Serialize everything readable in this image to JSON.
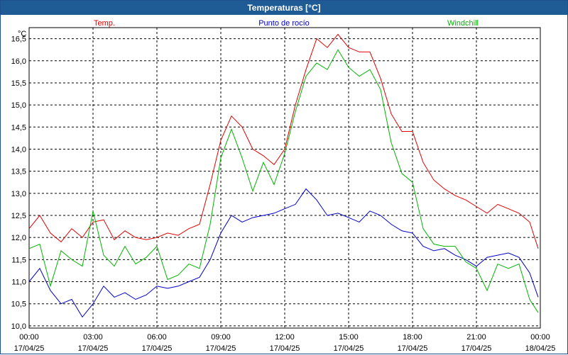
{
  "window": {
    "title": "Temperaturas [°C]"
  },
  "chart_data": {
    "type": "line",
    "title": "Temperaturas [°C]",
    "ylabel": "°C",
    "xlabel": "",
    "ylim": [
      9.95,
      16.75
    ],
    "xlim_hours": [
      0,
      24
    ],
    "grid": true,
    "legend_position": "top",
    "yticks": [
      "10,0",
      "10,5",
      "11,0",
      "11,5",
      "12,0",
      "12,5",
      "13,0",
      "13,5",
      "14,0",
      "14,5",
      "15,0",
      "15,5",
      "16,0",
      "16,5"
    ],
    "ytick_values": [
      10.0,
      10.5,
      11.0,
      11.5,
      12.0,
      12.5,
      13.0,
      13.5,
      14.0,
      14.5,
      15.0,
      15.5,
      16.0,
      16.5
    ],
    "xticks": [
      {
        "time": "00:00",
        "date": "17/04/25"
      },
      {
        "time": "03:00",
        "date": "17/04/25"
      },
      {
        "time": "06:00",
        "date": "17/04/25"
      },
      {
        "time": "09:00",
        "date": "17/04/25"
      },
      {
        "time": "12:00",
        "date": "17/04/25"
      },
      {
        "time": "15:00",
        "date": "17/04/25"
      },
      {
        "time": "18:00",
        "date": "17/04/25"
      },
      {
        "time": "21:00",
        "date": "17/04/25"
      },
      {
        "time": "00:00",
        "date": "18/04/25"
      }
    ],
    "x_hours": [
      0,
      0.5,
      1,
      1.5,
      2,
      2.5,
      3,
      3.5,
      4,
      4.5,
      5,
      5.5,
      6,
      6.5,
      7,
      7.5,
      8,
      8.5,
      9,
      9.5,
      10,
      10.5,
      11,
      11.5,
      12,
      12.5,
      13,
      13.5,
      14,
      14.5,
      15,
      15.5,
      16,
      16.5,
      17,
      17.5,
      18,
      18.5,
      19,
      19.5,
      20,
      20.5,
      21,
      21.5,
      22,
      22.5,
      23,
      23.5,
      23.9
    ],
    "series": [
      {
        "name": "Temp.",
        "color": "#e00000",
        "values": [
          12.2,
          12.5,
          12.1,
          11.9,
          12.2,
          12.0,
          12.35,
          12.4,
          11.95,
          12.15,
          12.0,
          11.95,
          12.0,
          12.1,
          12.05,
          12.2,
          12.3,
          13.2,
          14.2,
          14.75,
          14.5,
          14.0,
          13.85,
          13.65,
          14.0,
          15.0,
          15.8,
          16.5,
          16.3,
          16.6,
          16.3,
          16.2,
          16.2,
          15.6,
          14.8,
          14.4,
          14.4,
          13.7,
          13.3,
          13.1,
          12.95,
          12.85,
          12.7,
          12.55,
          12.75,
          12.65,
          12.55,
          12.35,
          11.75
        ]
      },
      {
        "name": "Punto de rocío",
        "color": "#0000c8",
        "values": [
          11.0,
          11.3,
          10.8,
          10.5,
          10.6,
          10.2,
          10.5,
          10.9,
          10.65,
          10.75,
          10.6,
          10.7,
          10.9,
          10.85,
          10.9,
          11.0,
          11.1,
          11.5,
          12.1,
          12.5,
          12.35,
          12.45,
          12.5,
          12.55,
          12.65,
          12.75,
          13.1,
          12.85,
          12.5,
          12.55,
          12.45,
          12.35,
          12.6,
          12.5,
          12.3,
          12.15,
          12.1,
          11.8,
          11.7,
          11.75,
          11.6,
          11.5,
          11.35,
          11.55,
          11.6,
          11.65,
          11.55,
          11.2,
          10.65
        ]
      },
      {
        "name": "Windchill",
        "color": "#00b400",
        "values": [
          11.75,
          11.85,
          10.9,
          11.7,
          11.5,
          11.35,
          12.6,
          11.6,
          11.35,
          11.8,
          11.4,
          11.55,
          11.8,
          11.05,
          11.15,
          11.4,
          11.3,
          12.3,
          13.8,
          14.45,
          13.8,
          13.05,
          13.7,
          13.2,
          13.9,
          14.85,
          15.65,
          15.95,
          15.8,
          16.25,
          15.85,
          15.65,
          15.8,
          15.35,
          14.15,
          13.45,
          13.25,
          12.2,
          11.85,
          11.8,
          11.8,
          11.45,
          11.3,
          10.8,
          11.4,
          11.3,
          11.4,
          10.6,
          10.3
        ]
      }
    ]
  }
}
